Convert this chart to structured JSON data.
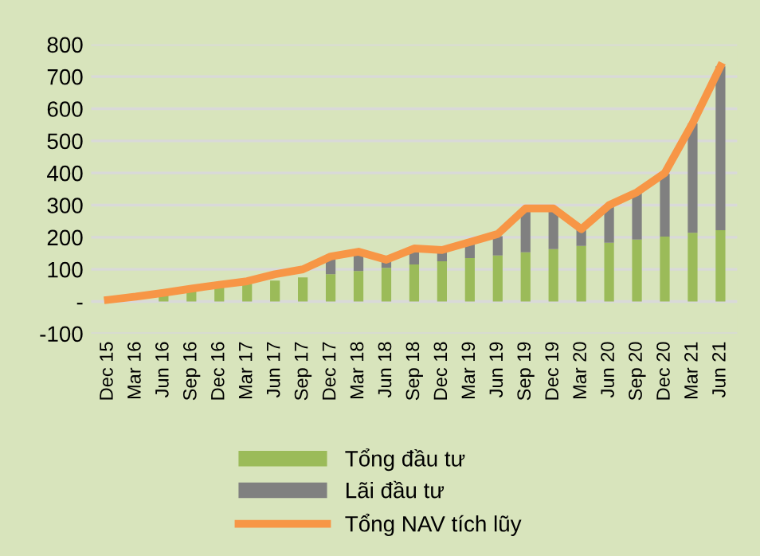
{
  "chart_data": {
    "type": "bar",
    "stacked": true,
    "categories": [
      "Dec 15",
      "Mar 16",
      "Jun 16",
      "Sep 16",
      "Dec 16",
      "Mar 17",
      "Jun 17",
      "Sep 17",
      "Dec 17",
      "Mar 18",
      "Jun 18",
      "Sep 18",
      "Dec 18",
      "Mar 19",
      "Jun 19",
      "Sep 19",
      "Dec 19",
      "Mar 20",
      "Jun 20",
      "Sep 20",
      "Dec 20",
      "Mar 21",
      "Jun 21"
    ],
    "series": [
      {
        "name": "Tổng đầu tư",
        "color": "#9bbb59",
        "values": [
          null,
          null,
          25,
          35,
          45,
          55,
          65,
          75,
          85,
          95,
          105,
          115,
          125,
          135,
          143,
          153,
          163,
          173,
          183,
          193,
          202,
          214,
          222
        ]
      },
      {
        "name": "Lãi đầu tư",
        "color": "#808080",
        "values": [
          null,
          null,
          null,
          null,
          null,
          null,
          null,
          null,
          55,
          60,
          25,
          50,
          35,
          50,
          60,
          135,
          120,
          50,
          115,
          145,
          195,
          340,
          510
        ]
      },
      {
        "name": "Tổng NAV tích lũy",
        "type": "line",
        "color": "#f79646",
        "values": [
          5,
          15,
          27,
          40,
          52,
          63,
          85,
          100,
          140,
          155,
          130,
          165,
          160,
          185,
          210,
          290,
          290,
          225,
          300,
          340,
          400,
          555,
          732
        ]
      }
    ],
    "ylim": [
      -100,
      800
    ],
    "yticks": [
      {
        "value": -100,
        "label": "-100"
      },
      {
        "value": 0,
        "label": "-"
      },
      100,
      200,
      300,
      400,
      500,
      600,
      700,
      800
    ],
    "grid": "y",
    "legend": "bottom"
  }
}
